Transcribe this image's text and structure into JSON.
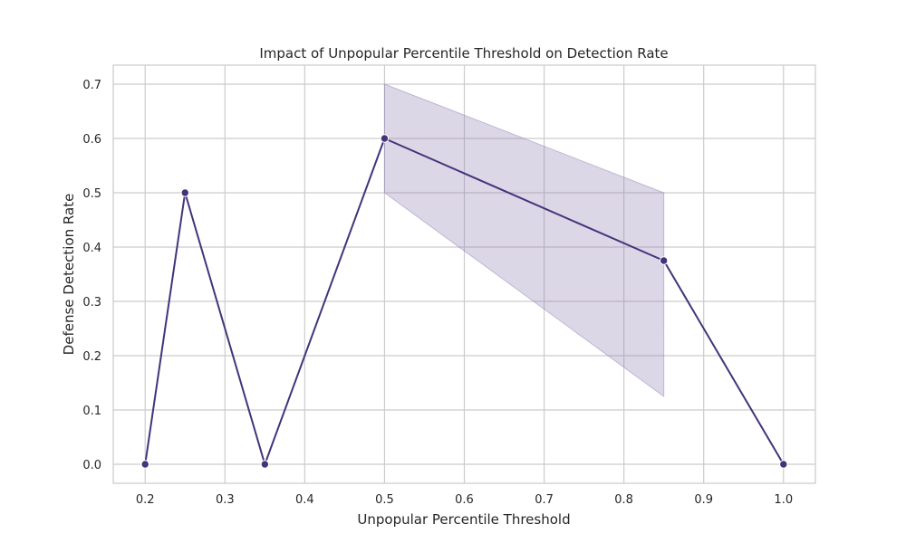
{
  "chart_data": {
    "type": "line",
    "title": "Impact of Unpopular Percentile Threshold on Detection Rate",
    "xlabel": "Unpopular Percentile Threshold",
    "ylabel": "Defense Detection Rate",
    "xlim": [
      0.16,
      1.04
    ],
    "ylim": [
      -0.035,
      0.735
    ],
    "x_ticks": [
      0.2,
      0.3,
      0.4,
      0.5,
      0.6,
      0.7,
      0.8,
      0.9,
      1.0
    ],
    "x_tick_labels": [
      "0.2",
      "0.3",
      "0.4",
      "0.5",
      "0.6",
      "0.7",
      "0.8",
      "0.9",
      "1.0"
    ],
    "y_ticks": [
      0.0,
      0.1,
      0.2,
      0.3,
      0.4,
      0.5,
      0.6,
      0.7
    ],
    "y_tick_labels": [
      "0.0",
      "0.1",
      "0.2",
      "0.3",
      "0.4",
      "0.5",
      "0.6",
      "0.7"
    ],
    "grid": true,
    "series": [
      {
        "x": [
          0.2,
          0.25,
          0.35,
          0.5,
          0.85,
          1.0
        ],
        "y": [
          0.0,
          0.5,
          0.0,
          0.6,
          0.375,
          0.0
        ],
        "color": "#44337a",
        "markers": true,
        "confidence_band": {
          "x": [
            0.5,
            0.85
          ],
          "lower": [
            0.5,
            0.125
          ],
          "upper": [
            0.7,
            0.5
          ],
          "color": "#8a7ab0"
        }
      }
    ]
  }
}
